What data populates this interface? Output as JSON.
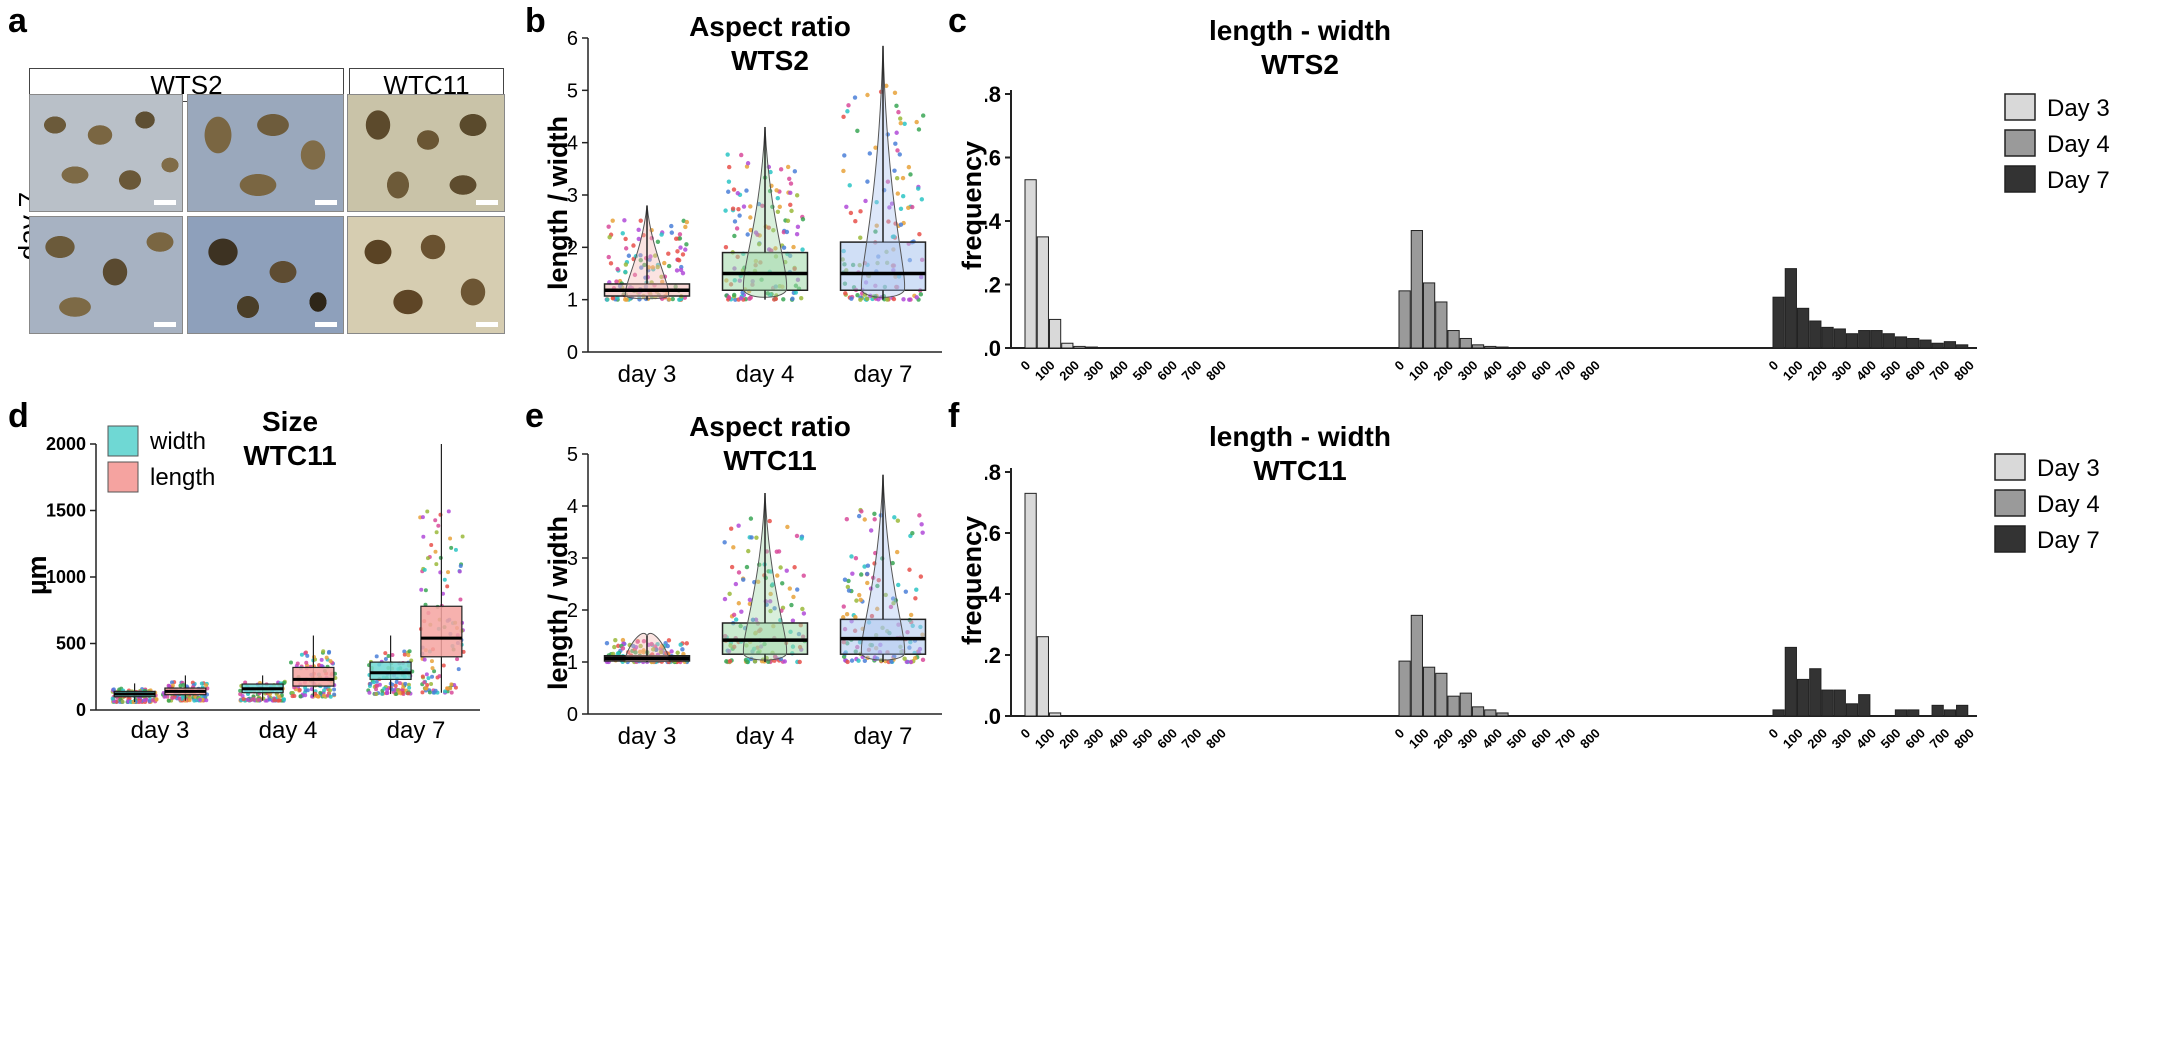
{
  "panels": {
    "a": {
      "label": "a",
      "row_label": "day 7",
      "headers": [
        "WTS2",
        "WTC11"
      ]
    },
    "b": {
      "label": "b"
    },
    "c": {
      "label": "c"
    },
    "d": {
      "label": "d"
    },
    "e": {
      "label": "e"
    },
    "f": {
      "label": "f"
    }
  },
  "colors": {
    "day3_hist": "#d9d9d9",
    "day4_hist": "#9a9a9a",
    "day7_hist": "#333333",
    "violin_day3": "#f4b8b4",
    "violin_day4": "#9fd8a8",
    "violin_day7": "#a9c4ef",
    "width": "#6fd8d4",
    "length": "#f5a3a0"
  },
  "chart_data": [
    {
      "id": "b",
      "type": "box",
      "title": "Aspect ratio",
      "subtitle": "WTS2",
      "xlabel": "",
      "ylabel": "length / width",
      "ylim": [
        0,
        6
      ],
      "yticks": [
        0,
        1,
        2,
        3,
        4,
        5,
        6
      ],
      "categories": [
        "day 3",
        "day 4",
        "day 7"
      ],
      "boxes": [
        {
          "q1": 1.07,
          "median": 1.18,
          "q3": 1.3,
          "whisker_low": 1.0,
          "whisker_high": 2.8,
          "max": 2.8
        },
        {
          "q1": 1.18,
          "median": 1.5,
          "q3": 1.9,
          "whisker_low": 1.0,
          "whisker_high": 4.3,
          "max": 4.3
        },
        {
          "q1": 1.18,
          "median": 1.5,
          "q3": 2.1,
          "whisker_low": 1.0,
          "whisker_high": 5.85,
          "max": 5.85
        }
      ]
    },
    {
      "id": "c",
      "type": "bar",
      "title": "length - width",
      "subtitle": "WTS2",
      "xlabel": "",
      "ylabel": "frequency",
      "ylim": [
        0,
        0.8
      ],
      "yticks": [
        "0.0",
        "0.2",
        "0.4",
        "0.6",
        "0.8"
      ],
      "bin_labels": [
        "0",
        "100",
        "200",
        "300",
        "400",
        "500",
        "600",
        "700",
        "800"
      ],
      "legend": [
        "Day 3",
        "Day 4",
        "Day 7"
      ],
      "series": [
        {
          "name": "Day 3",
          "values": [
            0.53,
            0.35,
            0.09,
            0.015,
            0.005,
            0.003,
            0,
            0,
            0,
            0,
            0,
            0,
            0,
            0,
            0,
            0,
            0
          ]
        },
        {
          "name": "Day 4",
          "values": [
            0.18,
            0.37,
            0.205,
            0.145,
            0.055,
            0.03,
            0.01,
            0.005,
            0.003,
            0,
            0,
            0,
            0,
            0,
            0,
            0,
            0
          ]
        },
        {
          "name": "Day 7",
          "values": [
            0.16,
            0.25,
            0.125,
            0.085,
            0.065,
            0.06,
            0.045,
            0.055,
            0.055,
            0.045,
            0.035,
            0.03,
            0.025,
            0.015,
            0.02,
            0.01,
            0
          ]
        }
      ]
    },
    {
      "id": "d",
      "type": "box",
      "title": "Size",
      "subtitle": "WTC11",
      "xlabel": "",
      "ylabel": "µm",
      "ylim": [
        0,
        2000
      ],
      "yticks": [
        0,
        500,
        1000,
        1500,
        2000
      ],
      "categories": [
        "day 3",
        "day 4",
        "day  7"
      ],
      "legend": [
        "width",
        "length"
      ],
      "series": [
        {
          "name": "width",
          "boxes": [
            {
              "q1": 100,
              "median": 120,
              "q3": 140,
              "whisker_low": 60,
              "whisker_high": 200
            },
            {
              "q1": 130,
              "median": 160,
              "q3": 195,
              "whisker_low": 70,
              "whisker_high": 260
            },
            {
              "q1": 230,
              "median": 280,
              "q3": 360,
              "whisker_low": 120,
              "whisker_high": 560
            }
          ]
        },
        {
          "name": "length",
          "boxes": [
            {
              "q1": 115,
              "median": 140,
              "q3": 165,
              "whisker_low": 70,
              "whisker_high": 260
            },
            {
              "q1": 180,
              "median": 230,
              "q3": 320,
              "whisker_low": 100,
              "whisker_high": 560
            },
            {
              "q1": 400,
              "median": 540,
              "q3": 780,
              "whisker_low": 130,
              "whisker_high": 2000
            }
          ]
        }
      ]
    },
    {
      "id": "e",
      "type": "box",
      "title": "Aspect ratio",
      "subtitle": "WTC11",
      "xlabel": "",
      "ylabel": "length / width",
      "ylim": [
        0,
        5
      ],
      "yticks": [
        0,
        1,
        2,
        3,
        4,
        5
      ],
      "categories": [
        "day 3",
        "day 4",
        "day 7"
      ],
      "boxes": [
        {
          "q1": 1.02,
          "median": 1.07,
          "q3": 1.12,
          "whisker_low": 1.0,
          "whisker_high": 1.5,
          "max": 1.5
        },
        {
          "q1": 1.15,
          "median": 1.42,
          "q3": 1.75,
          "whisker_low": 1.0,
          "whisker_high": 4.25,
          "max": 4.25
        },
        {
          "q1": 1.15,
          "median": 1.45,
          "q3": 1.82,
          "whisker_low": 1.0,
          "whisker_high": 4.6,
          "max": 4.6
        }
      ]
    },
    {
      "id": "f",
      "type": "bar",
      "title": "length - width",
      "subtitle": "WTC11",
      "xlabel": "",
      "ylabel": "frequency",
      "ylim": [
        0,
        0.8
      ],
      "yticks": [
        "0.0",
        "0.2",
        "0.4",
        "0.6",
        "0.8"
      ],
      "bin_labels": [
        "0",
        "100",
        "200",
        "300",
        "400",
        "500",
        "600",
        "700",
        "800"
      ],
      "legend": [
        "Day 3",
        "Day 4",
        "Day 7"
      ],
      "series": [
        {
          "name": "Day 3",
          "values": [
            0.73,
            0.26,
            0.01,
            0,
            0,
            0,
            0,
            0,
            0,
            0,
            0,
            0,
            0,
            0,
            0,
            0,
            0
          ]
        },
        {
          "name": "Day 4",
          "values": [
            0.18,
            0.33,
            0.16,
            0.14,
            0.065,
            0.075,
            0.03,
            0.02,
            0.01,
            0,
            0,
            0,
            0,
            0,
            0,
            0,
            0
          ]
        },
        {
          "name": "Day 7",
          "values": [
            0.02,
            0.225,
            0.12,
            0.155,
            0.085,
            0.085,
            0.04,
            0.07,
            0,
            0,
            0.02,
            0.02,
            0,
            0.035,
            0.02,
            0.035,
            0
          ]
        }
      ]
    }
  ]
}
